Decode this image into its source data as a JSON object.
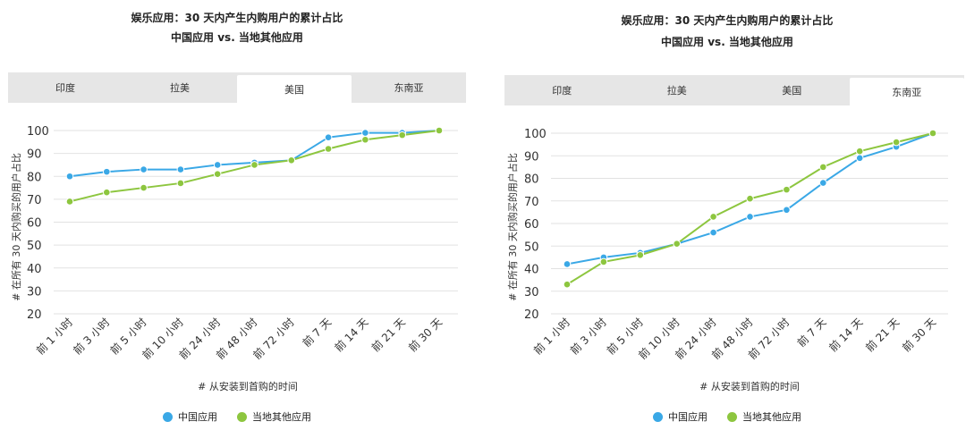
{
  "colors": {
    "china": "#3aa8e6",
    "local": "#8dc63f",
    "grid": "#e2e2e2",
    "tab_bg": "#e6e6e6"
  },
  "panels": [
    {
      "title": "娱乐应用：30 天内产生内购用户的累计占比",
      "subtitle": "中国应用 vs. 当地其他应用",
      "tabs": [
        "印度",
        "拉美",
        "美国",
        "东南亚"
      ],
      "active_tab": 2,
      "legend": [
        "中国应用",
        "当地其他应用"
      ]
    },
    {
      "title": "娱乐应用：30 天内产生内购用户的累计占比",
      "subtitle": "中国应用 vs. 当地其他应用",
      "tabs": [
        "印度",
        "拉美",
        "美国",
        "东南亚"
      ],
      "active_tab": 3,
      "legend": [
        "中国应用",
        "当地其他应用"
      ]
    }
  ],
  "chart_data": [
    {
      "type": "line",
      "categories": [
        "前 1 小时",
        "前 3 小时",
        "前 5 小时",
        "前 10 小时",
        "前 24 小时",
        "前 48 小时",
        "前 72 小时",
        "前 7 天",
        "前 14 天",
        "前 21 天",
        "前 30 天"
      ],
      "series": [
        {
          "name": "中国应用",
          "values": [
            80,
            82,
            83,
            83,
            85,
            86,
            87,
            97,
            99,
            99,
            100
          ]
        },
        {
          "name": "当地其他应用",
          "values": [
            69,
            73,
            75,
            77,
            81,
            85,
            87,
            92,
            96,
            98,
            100
          ]
        }
      ],
      "ylim": [
        20,
        100
      ],
      "yticks": [
        20,
        30,
        40,
        50,
        60,
        70,
        80,
        90,
        100
      ],
      "xlabel": "# 从安装到首购的时间",
      "ylabel": "# 在所有 30 天内购买的用户占比",
      "grid": true,
      "legend_position": "bottom"
    },
    {
      "type": "line",
      "categories": [
        "前 1 小时",
        "前 3 小时",
        "前 5 小时",
        "前 10 小时",
        "前 24 小时",
        "前 48 小时",
        "前 72 小时",
        "前 7 天",
        "前 14 天",
        "前 21 天",
        "前 30 天"
      ],
      "series": [
        {
          "name": "中国应用",
          "values": [
            42,
            45,
            47,
            51,
            56,
            63,
            66,
            78,
            89,
            94,
            100
          ]
        },
        {
          "name": "当地其他应用",
          "values": [
            33,
            43,
            46,
            51,
            63,
            71,
            75,
            85,
            92,
            96,
            100
          ]
        }
      ],
      "ylim": [
        20,
        100
      ],
      "yticks": [
        20,
        30,
        40,
        50,
        60,
        70,
        80,
        90,
        100
      ],
      "xlabel": "# 从安装到首购的时间",
      "ylabel": "# 在所有 30 天内购买的用户占比",
      "grid": true,
      "legend_position": "bottom"
    }
  ]
}
